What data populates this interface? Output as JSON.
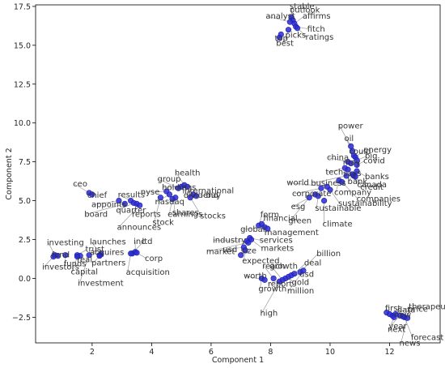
{
  "chart_data": {
    "type": "scatter",
    "xlabel": "Component 1",
    "ylabel": "Component 2",
    "xlim": [
      0.1,
      13.7
    ],
    "ylim": [
      -4.15,
      17.6
    ],
    "xticks": [
      2,
      4,
      6,
      8,
      10,
      12
    ],
    "yticks": [
      -2.5,
      0.0,
      2.5,
      5.0,
      7.5,
      10.0,
      12.5,
      15.0,
      17.5
    ],
    "ytick_labels": [
      "−2.5",
      "0.0",
      "2.5",
      "5.0",
      "7.5",
      "10.0",
      "12.5",
      "15.0",
      "17.5"
    ],
    "grid": false,
    "marker_color": "#2a2ad6",
    "points": [
      {
        "x": 8.7,
        "y": 16.8,
        "label": "outlook"
      },
      {
        "x": 8.75,
        "y": 16.6,
        "label": "stable"
      },
      {
        "x": 8.8,
        "y": 16.4,
        "label": "affirms"
      },
      {
        "x": 8.85,
        "y": 16.2,
        "label": "fitch"
      },
      {
        "x": 8.6,
        "y": 16.0,
        "label": "picks"
      },
      {
        "x": 8.65,
        "y": 16.5,
        "label": "analyst"
      },
      {
        "x": 8.9,
        "y": 16.1,
        "label": "ratings"
      },
      {
        "x": 8.3,
        "y": 15.5,
        "label": "top"
      },
      {
        "x": 8.35,
        "y": 15.7,
        "label": "best"
      },
      {
        "x": 10.7,
        "y": 8.5,
        "label": "power"
      },
      {
        "x": 10.75,
        "y": 8.2,
        "label": "oil"
      },
      {
        "x": 10.8,
        "y": 7.9,
        "label": "could"
      },
      {
        "x": 10.85,
        "y": 7.8,
        "label": "energy"
      },
      {
        "x": 10.9,
        "y": 7.6,
        "label": "big"
      },
      {
        "x": 10.6,
        "y": 7.5,
        "label": "china"
      },
      {
        "x": 10.7,
        "y": 7.4,
        "label": "may"
      },
      {
        "x": 10.9,
        "y": 7.3,
        "label": "covid"
      },
      {
        "x": 10.5,
        "y": 7.1,
        "label": "tech"
      },
      {
        "x": 10.6,
        "y": 7.0,
        "label": "says"
      },
      {
        "x": 10.9,
        "y": 6.9,
        "label": "banks"
      },
      {
        "x": 10.55,
        "y": 6.6,
        "label": "business"
      },
      {
        "x": 10.75,
        "y": 6.7,
        "label": "bank"
      },
      {
        "x": 10.8,
        "y": 6.6,
        "label": "canada"
      },
      {
        "x": 10.85,
        "y": 6.55,
        "label": "credit"
      },
      {
        "x": 10.3,
        "y": 6.3,
        "label": "company"
      },
      {
        "x": 10.4,
        "y": 6.2,
        "label": "companies"
      },
      {
        "x": 9.9,
        "y": 5.9,
        "label": "world"
      },
      {
        "x": 9.7,
        "y": 5.8,
        "label": "corporate"
      },
      {
        "x": 10.0,
        "y": 5.7,
        "label": "sustainability"
      },
      {
        "x": 9.5,
        "y": 5.4,
        "label": "esg"
      },
      {
        "x": 9.6,
        "y": 5.3,
        "label": "sustainable"
      },
      {
        "x": 9.3,
        "y": 5.2,
        "label": "green"
      },
      {
        "x": 9.8,
        "y": 5.0,
        "label": "climate"
      },
      {
        "x": 1.9,
        "y": 5.5,
        "label": "ceo"
      },
      {
        "x": 2.0,
        "y": 5.4,
        "label": "chief"
      },
      {
        "x": 2.9,
        "y": 5.0,
        "label": "appoints"
      },
      {
        "x": 3.3,
        "y": 5.0,
        "label": "results"
      },
      {
        "x": 3.1,
        "y": 4.8,
        "label": "board"
      },
      {
        "x": 3.4,
        "y": 4.85,
        "label": "quarter"
      },
      {
        "x": 3.5,
        "y": 4.8,
        "label": "reports"
      },
      {
        "x": 3.6,
        "y": 4.7,
        "label": "announces"
      },
      {
        "x": 4.9,
        "y": 5.8,
        "label": "group"
      },
      {
        "x": 5.0,
        "y": 5.9,
        "label": "holdings"
      },
      {
        "x": 5.1,
        "y": 6.0,
        "label": "health"
      },
      {
        "x": 5.2,
        "y": 5.9,
        "label": "international"
      },
      {
        "x": 4.5,
        "y": 5.6,
        "label": "nyse"
      },
      {
        "x": 4.6,
        "y": 5.4,
        "label": "nasdaq"
      },
      {
        "x": 4.8,
        "y": 5.2,
        "label": "shares"
      },
      {
        "x": 4.7,
        "y": 5.1,
        "label": "earnings"
      },
      {
        "x": 4.3,
        "y": 5.2,
        "label": "stock"
      },
      {
        "x": 5.4,
        "y": 5.4,
        "label": "dividend"
      },
      {
        "x": 5.5,
        "y": 5.3,
        "label": "buy"
      },
      {
        "x": 5.3,
        "y": 5.2,
        "label": "stocks"
      },
      {
        "x": 0.75,
        "y": 1.5,
        "label": "investing"
      },
      {
        "x": 0.85,
        "y": 1.45,
        "label": "fund"
      },
      {
        "x": 0.7,
        "y": 1.4,
        "label": "investors"
      },
      {
        "x": 1.1,
        "y": 1.5,
        "label": "funds"
      },
      {
        "x": 1.5,
        "y": 1.5,
        "label": "trust"
      },
      {
        "x": 1.6,
        "y": 1.45,
        "label": "real"
      },
      {
        "x": 1.5,
        "y": 1.4,
        "label": "capital"
      },
      {
        "x": 1.9,
        "y": 1.5,
        "label": "investment"
      },
      {
        "x": 2.3,
        "y": 1.55,
        "label": "launches"
      },
      {
        "x": 2.25,
        "y": 1.5,
        "label": "acquires"
      },
      {
        "x": 2.25,
        "y": 1.45,
        "label": "partners"
      },
      {
        "x": 3.35,
        "y": 1.6,
        "label": "ltd"
      },
      {
        "x": 3.45,
        "y": 1.7,
        "label": "inc"
      },
      {
        "x": 3.5,
        "y": 1.65,
        "label": "corp"
      },
      {
        "x": 3.3,
        "y": 1.6,
        "label": "acquisition"
      },
      {
        "x": 7.6,
        "y": 3.4,
        "label": "form"
      },
      {
        "x": 7.7,
        "y": 3.5,
        "label": "financial"
      },
      {
        "x": 7.8,
        "y": 3.3,
        "label": "global"
      },
      {
        "x": 7.9,
        "y": 3.2,
        "label": "management"
      },
      {
        "x": 7.3,
        "y": 2.6,
        "label": "services"
      },
      {
        "x": 7.2,
        "y": 2.4,
        "label": "industry"
      },
      {
        "x": 7.25,
        "y": 2.3,
        "label": "market"
      },
      {
        "x": 7.35,
        "y": 2.5,
        "label": "markets"
      },
      {
        "x": 7.1,
        "y": 2.0,
        "label": "usd"
      },
      {
        "x": 7.15,
        "y": 1.8,
        "label": "expected"
      },
      {
        "x": 7.0,
        "y": 1.5,
        "label": "size"
      },
      {
        "x": 7.7,
        "y": 0.0,
        "label": "growth"
      },
      {
        "x": 7.8,
        "y": -0.1,
        "label": "worth"
      },
      {
        "x": 8.1,
        "y": 0.0,
        "label": "reach"
      },
      {
        "x": 8.5,
        "y": 0.0,
        "label": "report"
      },
      {
        "x": 8.6,
        "y": 0.1,
        "label": "gold"
      },
      {
        "x": 8.7,
        "y": 0.2,
        "label": "usd"
      },
      {
        "x": 8.8,
        "y": 0.3,
        "label": "deal"
      },
      {
        "x": 9.0,
        "y": 0.4,
        "label": "billion"
      },
      {
        "x": 9.1,
        "y": 0.5,
        "label": "million"
      },
      {
        "x": 8.3,
        "y": -0.2,
        "label": "high"
      },
      {
        "x": 8.4,
        "y": -0.1,
        "label": "growth"
      },
      {
        "x": 11.9,
        "y": -2.2,
        "label": "first"
      },
      {
        "x": 12.0,
        "y": -2.3,
        "label": "new"
      },
      {
        "x": 12.1,
        "y": -2.4,
        "label": "therapeutics"
      },
      {
        "x": 12.2,
        "y": -2.3,
        "label": "data"
      },
      {
        "x": 12.35,
        "y": -2.4,
        "label": "year"
      },
      {
        "x": 12.15,
        "y": -2.5,
        "label": "next"
      },
      {
        "x": 12.5,
        "y": -2.5,
        "label": "forecast"
      },
      {
        "x": 12.6,
        "y": -2.55,
        "label": "news"
      },
      {
        "x": 12.45,
        "y": -2.45,
        "label": "price"
      }
    ]
  }
}
